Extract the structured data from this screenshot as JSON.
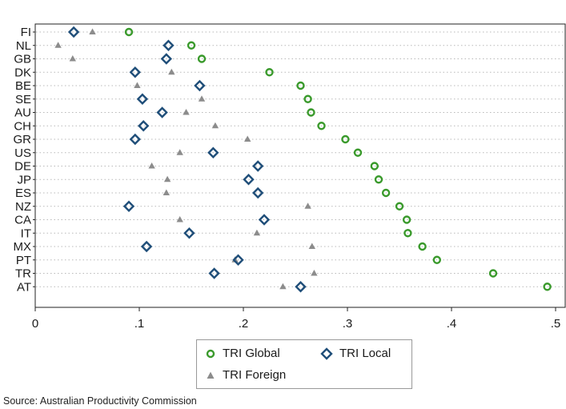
{
  "chart_data": {
    "type": "scatter",
    "orientation": "horizontal-dot-plot",
    "categories": [
      "FI",
      "NL",
      "GB",
      "DK",
      "BE",
      "SE",
      "AU",
      "CH",
      "GR",
      "US",
      "DE",
      "JP",
      "ES",
      "NZ",
      "CA",
      "IT",
      "MX",
      "PT",
      "TR",
      "AT"
    ],
    "series": [
      {
        "name": "TRI Global",
        "marker": "circle",
        "color": "#3a9a2c",
        "values": [
          0.09,
          0.15,
          0.16,
          0.225,
          0.255,
          0.262,
          0.265,
          0.275,
          0.298,
          0.31,
          0.326,
          0.33,
          0.337,
          0.35,
          0.357,
          0.358,
          0.372,
          0.386,
          0.44,
          0.492
        ]
      },
      {
        "name": "TRI Local",
        "marker": "diamond",
        "color": "#1f4e79",
        "values": [
          0.037,
          0.128,
          0.126,
          0.096,
          0.158,
          0.103,
          0.122,
          0.104,
          0.096,
          0.171,
          0.214,
          0.205,
          0.214,
          0.09,
          0.22,
          0.148,
          0.107,
          0.195,
          0.172,
          0.255
        ]
      },
      {
        "name": "TRI Foreign",
        "marker": "triangle",
        "color": "#8c8c8c",
        "values": [
          0.055,
          0.022,
          0.036,
          0.131,
          0.098,
          0.16,
          0.145,
          0.173,
          0.204,
          0.139,
          0.112,
          0.127,
          0.126,
          0.262,
          0.139,
          0.213,
          0.266,
          0.192,
          0.268,
          0.238
        ]
      }
    ],
    "xlim": [
      0,
      0.5
    ],
    "xticks": [
      0,
      0.1,
      0.2,
      0.3,
      0.4,
      0.5
    ],
    "xtick_labels": [
      "0",
      ".1",
      ".2",
      ".3",
      ".4",
      ".5"
    ],
    "grid": "horizontal dotted lines per category",
    "legend_position": "bottom",
    "title": "",
    "xlabel": "",
    "ylabel": ""
  },
  "legend": {
    "global_label": "TRI Global",
    "local_label": "TRI Local",
    "foreign_label": "TRI Foreign"
  },
  "source_text": "Source: Australian Productivity Commission"
}
